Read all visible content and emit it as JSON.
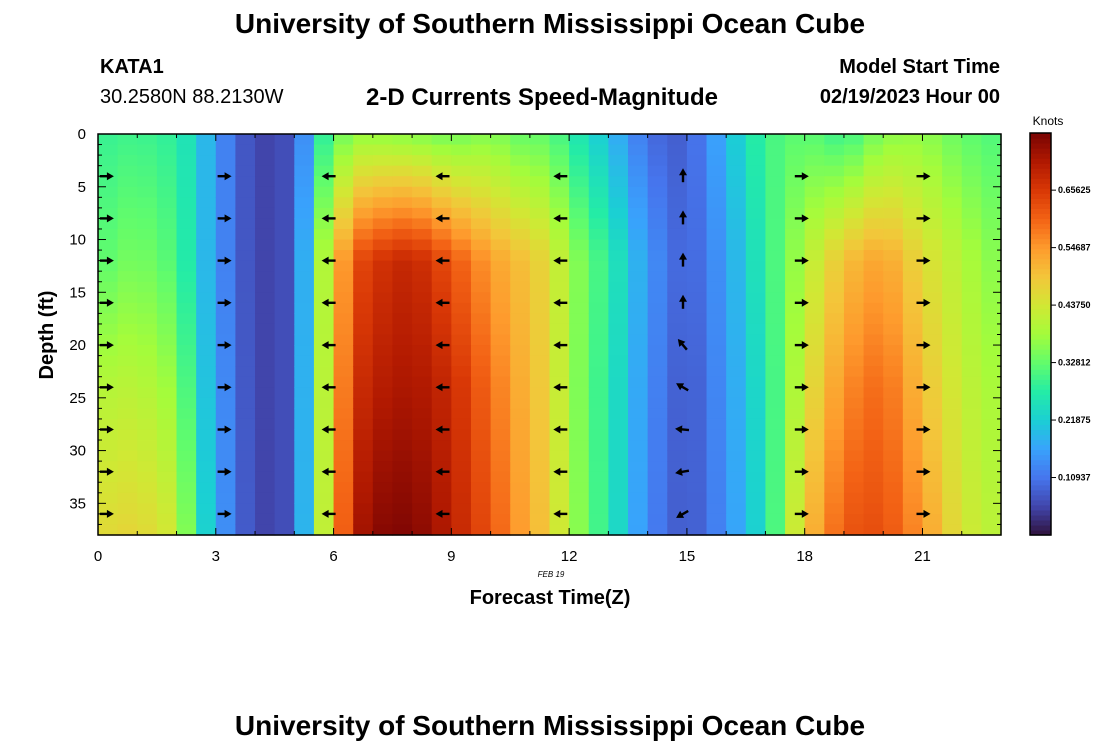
{
  "page": {
    "title_top": "University of Southern Mississippi Ocean Cube",
    "title_bottom": "University of Southern Mississippi Ocean Cube",
    "station_id": "KATA1",
    "coordinates": "30.2580N  88.2130W",
    "subtitle": "2-D Currents Speed-Magnitude",
    "model_start_label": "Model Start Time",
    "model_start_time": "02/19/2023 Hour 00"
  },
  "chart_data": {
    "type": "heatmap",
    "title": "2-D Currents Speed-Magnitude",
    "xlabel": "Forecast Time(Z)",
    "ylabel": "Depth (ft)",
    "date_annotation": "FEB 19",
    "xlim": [
      0,
      23
    ],
    "ylim": [
      38,
      0
    ],
    "xticks": [
      0,
      3,
      6,
      9,
      12,
      15,
      18,
      21
    ],
    "xtick_labels": [
      "0",
      "3",
      "6",
      "9",
      "12",
      "15",
      "18",
      "21"
    ],
    "yticks": [
      0,
      5,
      10,
      15,
      20,
      25,
      30,
      35
    ],
    "ytick_labels": [
      "0",
      "5",
      "10",
      "15",
      "20",
      "25",
      "30",
      "35"
    ],
    "colorbar": {
      "label": "Knots",
      "min": 0.0,
      "max": 0.765,
      "ticks": [
        0.10937,
        0.21875,
        0.32812,
        0.4375,
        0.54687,
        0.65625
      ],
      "tick_labels": [
        "0.10937",
        "0.21875",
        "0.32812",
        "0.43750",
        "0.54687",
        "0.65625"
      ],
      "colors": [
        "#30123b",
        "#4145ab",
        "#4675ed",
        "#39a2fc",
        "#1bcfd4",
        "#24eca6",
        "#61fc6c",
        "#a4fc3b",
        "#d1e834",
        "#f3c63a",
        "#fe9b2d",
        "#f36315",
        "#d93806",
        "#b11901",
        "#7a0403"
      ]
    },
    "speed_profiles": {
      "hours": [
        0,
        1,
        2,
        2.5,
        3,
        4,
        5,
        5.8,
        6.5,
        7,
        8,
        9,
        10,
        10.8,
        11.5,
        12,
        13,
        14,
        15,
        16,
        17,
        18,
        19,
        20,
        21,
        22,
        23
      ],
      "depths": [
        0,
        12,
        24,
        38
      ],
      "speed": [
        [
          0.29,
          0.32,
          0.4,
          0.46
        ],
        [
          0.3,
          0.35,
          0.41,
          0.47
        ],
        [
          0.28,
          0.31,
          0.37,
          0.43
        ],
        [
          0.23,
          0.23,
          0.25,
          0.28
        ],
        [
          0.15,
          0.15,
          0.16,
          0.17
        ],
        [
          0.05,
          0.05,
          0.05,
          0.05
        ],
        [
          0.07,
          0.07,
          0.07,
          0.07
        ],
        [
          0.3,
          0.42,
          0.43,
          0.44
        ],
        [
          0.37,
          0.62,
          0.66,
          0.7
        ],
        [
          0.37,
          0.66,
          0.7,
          0.75
        ],
        [
          0.36,
          0.69,
          0.72,
          0.76
        ],
        [
          0.34,
          0.62,
          0.68,
          0.7
        ],
        [
          0.36,
          0.54,
          0.59,
          0.62
        ],
        [
          0.33,
          0.5,
          0.52,
          0.54
        ],
        [
          0.33,
          0.46,
          0.47,
          0.48
        ],
        [
          0.28,
          0.38,
          0.38,
          0.39
        ],
        [
          0.2,
          0.28,
          0.27,
          0.27
        ],
        [
          0.1,
          0.15,
          0.14,
          0.13
        ],
        [
          0.08,
          0.08,
          0.07,
          0.07
        ],
        [
          0.19,
          0.16,
          0.15,
          0.14
        ],
        [
          0.3,
          0.28,
          0.26,
          0.25
        ],
        [
          0.33,
          0.4,
          0.44,
          0.49
        ],
        [
          0.29,
          0.5,
          0.56,
          0.62
        ],
        [
          0.36,
          0.54,
          0.6,
          0.63
        ],
        [
          0.37,
          0.46,
          0.5,
          0.55
        ],
        [
          0.33,
          0.4,
          0.42,
          0.44
        ],
        [
          0.31,
          0.35,
          0.38,
          0.4
        ]
      ]
    },
    "vectors": {
      "hours": [
        0.2,
        3.2,
        5.9,
        8.8,
        11.8,
        14.9,
        17.9,
        21.0
      ],
      "depths": [
        4,
        8,
        12,
        16,
        20,
        24,
        28,
        32,
        36
      ],
      "directions_deg": [
        90,
        90,
        270,
        270,
        270,
        0,
        90,
        90
      ],
      "direction_overrides": [
        {
          "hour": 14.9,
          "depth": 20,
          "deg": 320
        },
        {
          "hour": 14.9,
          "depth": 24,
          "deg": 300
        },
        {
          "hour": 14.9,
          "depth": 28,
          "deg": 275
        },
        {
          "hour": 14.9,
          "depth": 32,
          "deg": 260
        },
        {
          "hour": 14.9,
          "depth": 36,
          "deg": 240
        }
      ]
    }
  }
}
